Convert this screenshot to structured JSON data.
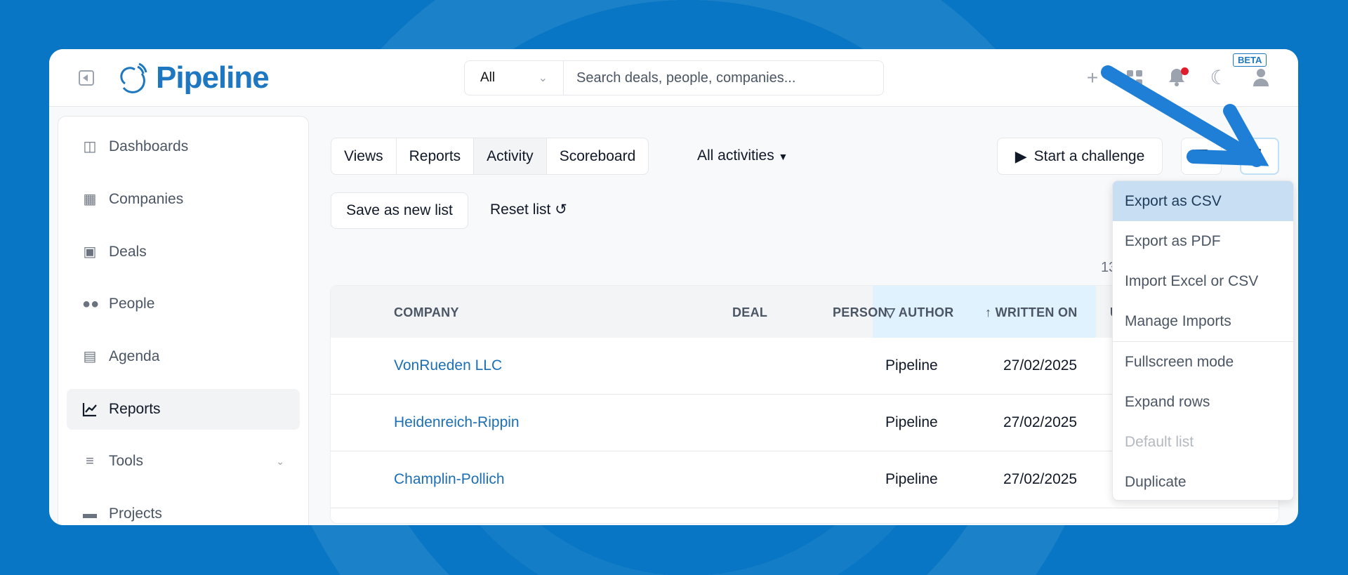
{
  "header": {
    "brand": "Pipeline",
    "search_scope": "All",
    "search_placeholder": "Search deals, people, companies...",
    "beta_label": "BETA",
    "icons": [
      "plus-icon",
      "apps-icon",
      "bell-icon",
      "moon-icon",
      "user-icon"
    ],
    "notification_dot": true
  },
  "sidebar": {
    "items": [
      {
        "label": "Dashboards",
        "icon": "dashboard-icon"
      },
      {
        "label": "Companies",
        "icon": "building-icon"
      },
      {
        "label": "Deals",
        "icon": "briefcase-icon"
      },
      {
        "label": "People",
        "icon": "people-icon"
      },
      {
        "label": "Agenda",
        "icon": "calendar-icon"
      },
      {
        "label": "Reports",
        "icon": "chart-line-icon",
        "active": true
      },
      {
        "label": "Tools",
        "icon": "sliders-icon",
        "expandable": true
      },
      {
        "label": "Projects",
        "icon": "folder-icon"
      }
    ]
  },
  "tabs": [
    {
      "label": "Views"
    },
    {
      "label": "Reports"
    },
    {
      "label": "Activity",
      "active": true
    },
    {
      "label": "Scoreboard"
    }
  ],
  "filter": {
    "label": "All activities"
  },
  "toolbar": {
    "save_label": "Save as new list",
    "reset_label": "Reset list",
    "challenge_label": "Start a challenge"
  },
  "count_partial": "13",
  "table": {
    "columns": [
      "COMPANY",
      "DEAL",
      "PERSON",
      "AUTHOR",
      "WRITTEN ON",
      "U"
    ],
    "rows": [
      {
        "company": "VonRueden LLC",
        "deal": "",
        "person": "",
        "author": "Pipeline",
        "written_on": "27/02/2025"
      },
      {
        "company": "Heidenreich-Rippin",
        "deal": "",
        "person": "",
        "author": "Pipeline",
        "written_on": "27/02/2025"
      },
      {
        "company": "Champlin-Pollich",
        "deal": "",
        "person": "",
        "author": "Pipeline",
        "written_on": "27/02/2025"
      }
    ]
  },
  "menu": {
    "items": [
      {
        "label": "Export as CSV",
        "state": "hover"
      },
      {
        "label": "Export as PDF"
      },
      {
        "label": "Import Excel or CSV"
      },
      {
        "label": "Manage Imports"
      },
      {
        "label": "Fullscreen mode",
        "separator_before": true
      },
      {
        "label": "Expand rows"
      },
      {
        "label": "Default list",
        "state": "disabled"
      },
      {
        "label": "Duplicate"
      }
    ]
  },
  "colors": {
    "brand": "#1d78c1",
    "background": "#0876c4",
    "annotation_arrow": "#1f7fd6",
    "menu_hover": "#c8def2"
  }
}
